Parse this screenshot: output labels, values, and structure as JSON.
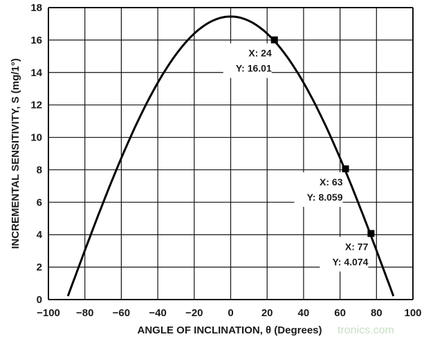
{
  "chart_data": {
    "type": "line",
    "title": "",
    "xlabel": "ANGLE OF INCLINATION, θ (Degrees)",
    "ylabel": "INCREMENTAL SENSITIVITY, S (mg/1°)",
    "xlim": [
      -100,
      100
    ],
    "ylim": [
      0,
      18
    ],
    "xticks": [
      "−100",
      "−80",
      "−60",
      "−40",
      "−20",
      "0",
      "20",
      "40",
      "60",
      "80",
      "100"
    ],
    "yticks": [
      "0",
      "2",
      "4",
      "6",
      "8",
      "10",
      "12",
      "14",
      "16",
      "18"
    ],
    "grid": true,
    "series": [
      {
        "x": [
          -89.3,
          -80,
          -70,
          -60,
          -50,
          -40,
          -30,
          -20,
          -10,
          0,
          10,
          20,
          30,
          40,
          50,
          60,
          70,
          80,
          89.3
        ],
        "y": [
          0.2,
          3.03,
          5.97,
          8.73,
          11.22,
          13.37,
          15.11,
          16.4,
          17.19,
          17.45,
          17.19,
          16.4,
          15.11,
          13.37,
          11.22,
          8.73,
          5.97,
          3.03,
          0.2
        ]
      }
    ],
    "annotations": [
      {
        "x": 24,
        "y": 16.01,
        "label_x": "X: 24",
        "label_y": "Y: 16.01"
      },
      {
        "x": 63,
        "y": 8.059,
        "label_x": "X: 63",
        "label_y": "Y: 8.059"
      },
      {
        "x": 77,
        "y": 4.074,
        "label_x": "X: 77",
        "label_y": "Y: 4.074"
      }
    ],
    "line_color": "#000000"
  },
  "watermark": "tronics.com"
}
